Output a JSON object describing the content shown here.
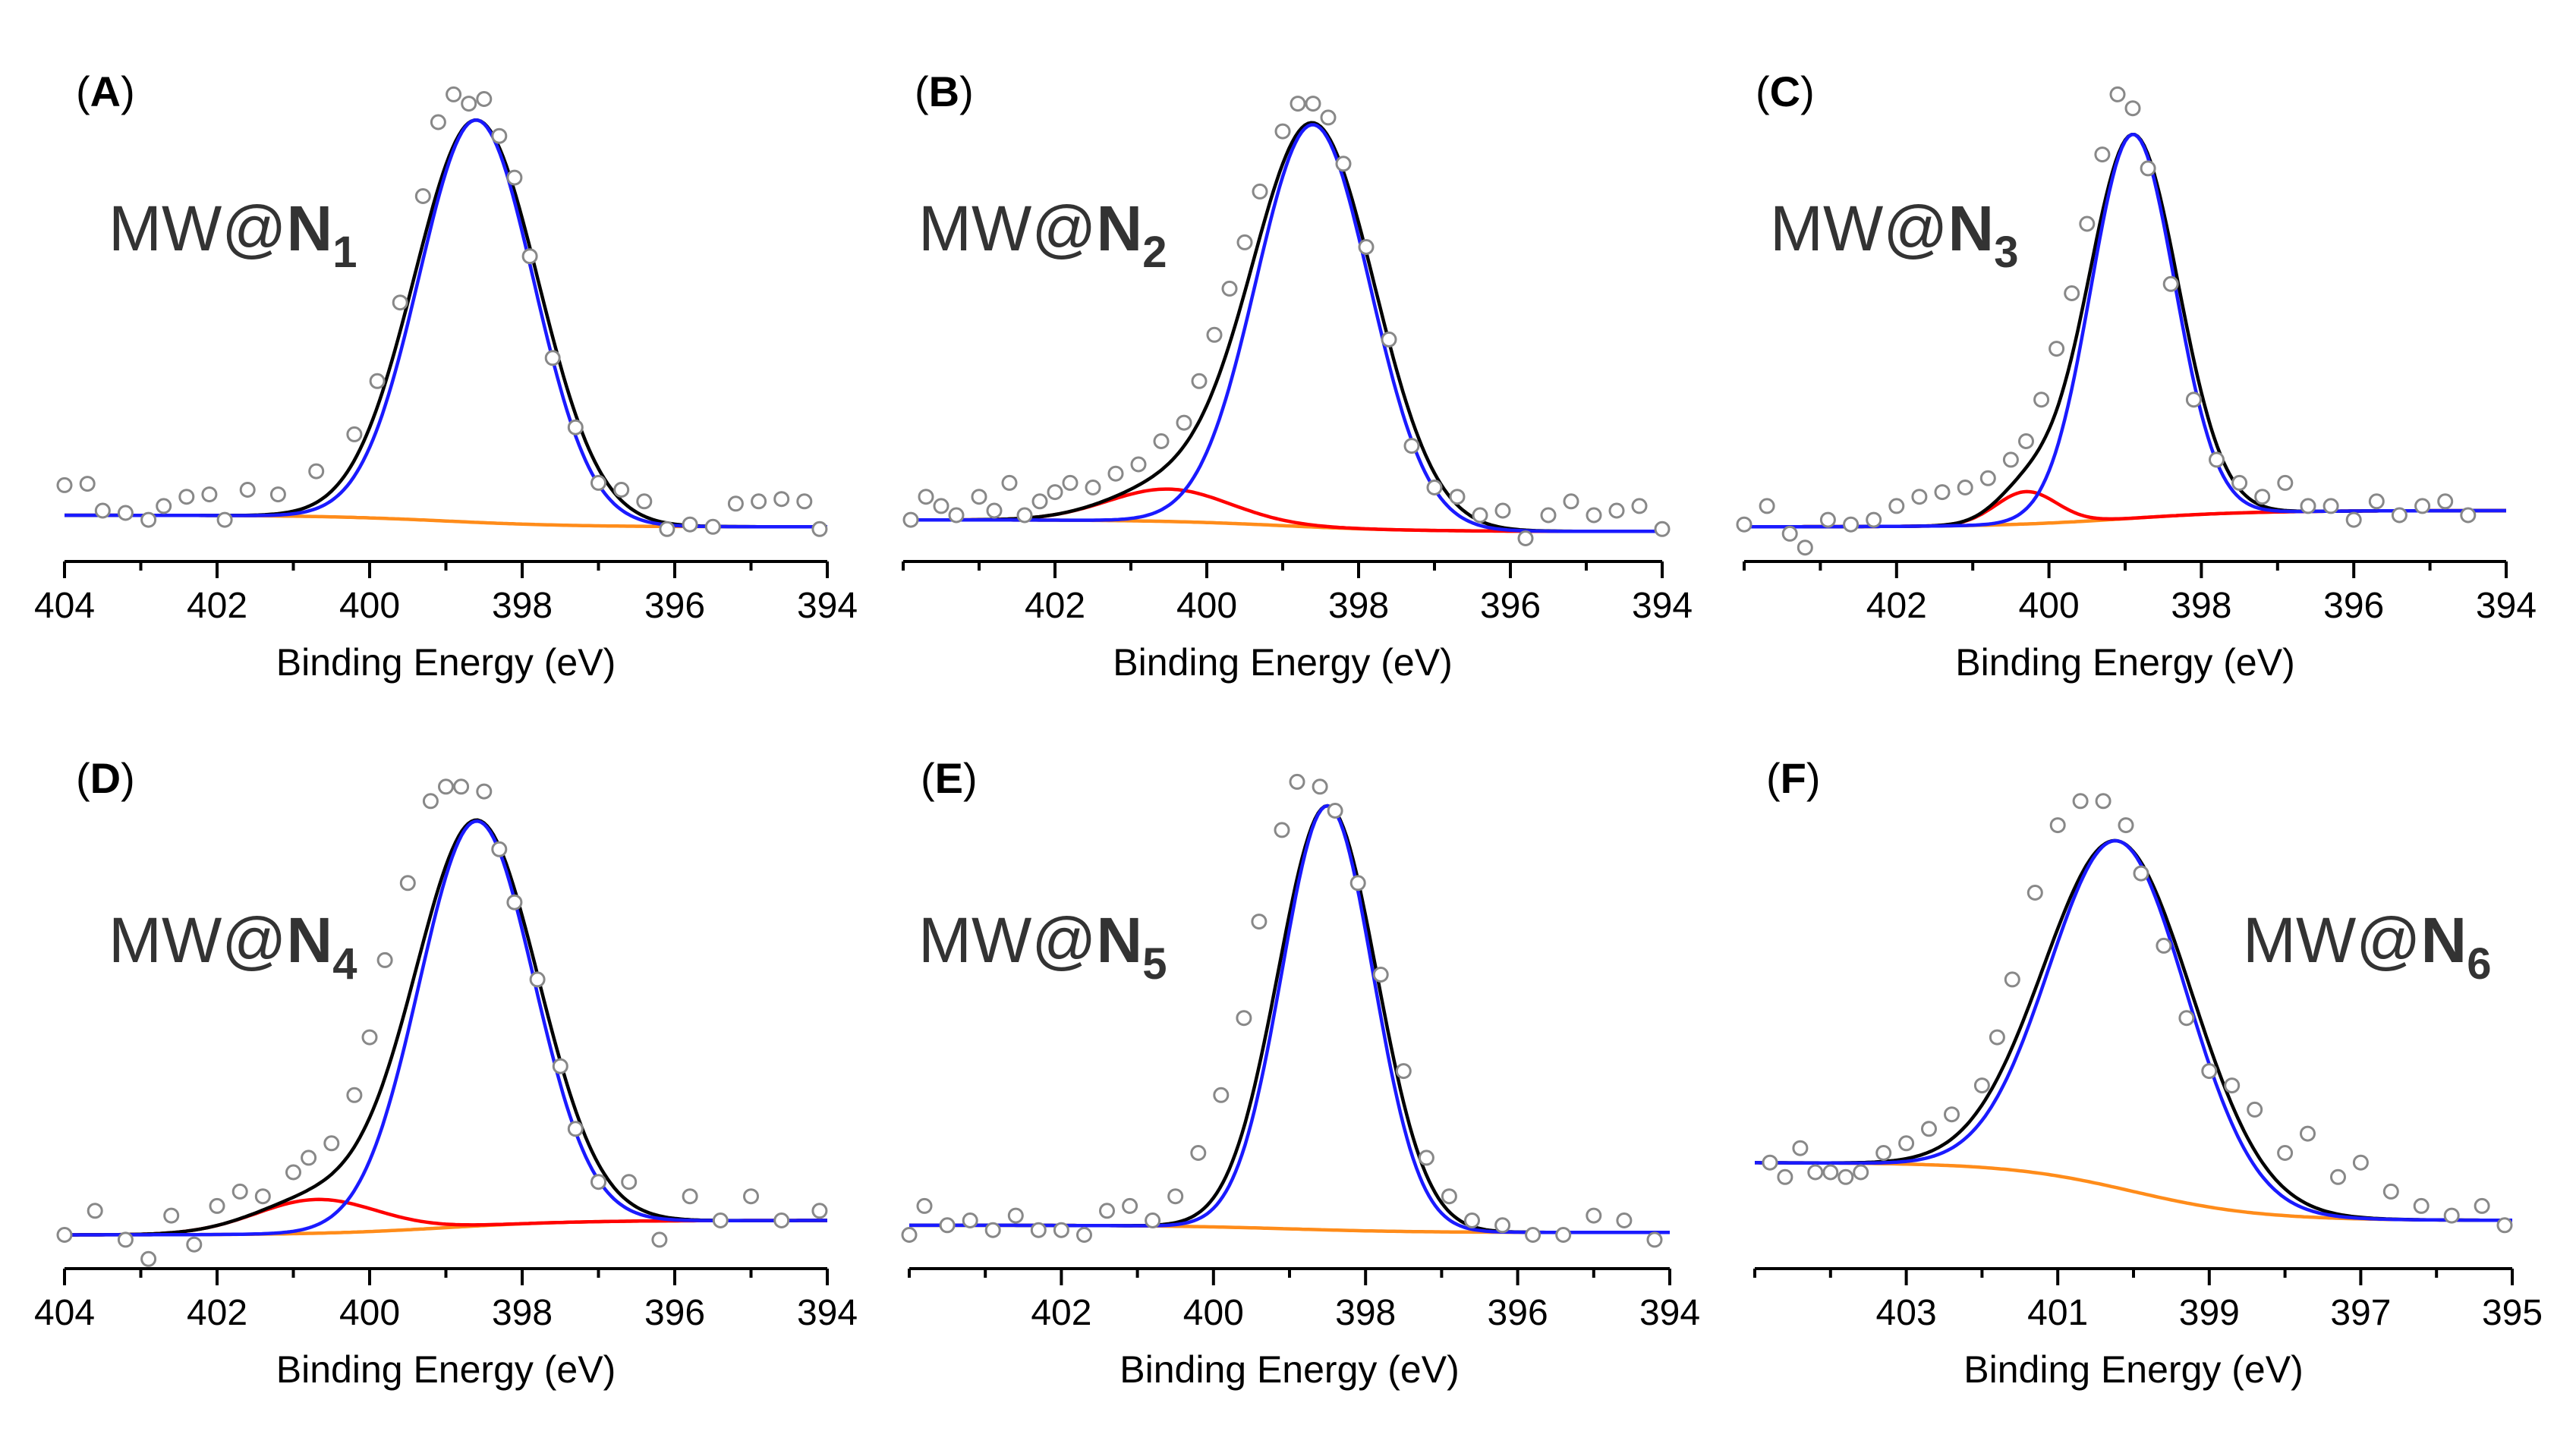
{
  "figure": {
    "colors": {
      "data_points": "#8a8a8a",
      "total_fit": "#000000",
      "main_peak": "#1a1aff",
      "secondary_peak": "#ff0000",
      "background": "#ff8c1a"
    }
  },
  "chart_data": [
    {
      "type": "scatter",
      "panel": "A",
      "title": "MW@N1",
      "title_main": "MW@",
      "title_bold": "N",
      "title_sub": "1",
      "xlabel": "Binding Energy (eV)",
      "ylabel": "",
      "xlim": [
        404,
        394
      ],
      "ylim": [
        0,
        1.05
      ],
      "xticks": [
        404,
        402,
        400,
        398,
        396,
        394
      ],
      "xtick_labels": [
        "404",
        "402",
        "400",
        "398",
        "396",
        "394"
      ],
      "peaks": [
        {
          "name": "main",
          "center": 398.6,
          "amp": 0.87,
          "width": 0.75
        }
      ],
      "background": {
        "left": 0.1,
        "right": 0.075
      },
      "points": [
        [
          404.0,
          0.165
        ],
        [
          403.7,
          0.168
        ],
        [
          403.5,
          0.11
        ],
        [
          403.2,
          0.105
        ],
        [
          402.9,
          0.09
        ],
        [
          402.7,
          0.12
        ],
        [
          402.4,
          0.14
        ],
        [
          402.1,
          0.145
        ],
        [
          401.9,
          0.09
        ],
        [
          401.6,
          0.155
        ],
        [
          401.2,
          0.145
        ],
        [
          400.7,
          0.195
        ],
        [
          400.2,
          0.275
        ],
        [
          399.9,
          0.39
        ],
        [
          399.6,
          0.56
        ],
        [
          399.3,
          0.79
        ],
        [
          399.1,
          0.95
        ],
        [
          398.9,
          1.01
        ],
        [
          398.7,
          0.99
        ],
        [
          398.5,
          1.0
        ],
        [
          398.3,
          0.92
        ],
        [
          398.1,
          0.83
        ],
        [
          397.9,
          0.66
        ],
        [
          397.6,
          0.44
        ],
        [
          397.3,
          0.29
        ],
        [
          397.0,
          0.17
        ],
        [
          396.7,
          0.155
        ],
        [
          396.4,
          0.13
        ],
        [
          396.1,
          0.07
        ],
        [
          395.8,
          0.08
        ],
        [
          395.5,
          0.075
        ],
        [
          395.2,
          0.125
        ],
        [
          394.9,
          0.13
        ],
        [
          394.6,
          0.135
        ],
        [
          394.3,
          0.13
        ],
        [
          394.1,
          0.07
        ]
      ]
    },
    {
      "type": "scatter",
      "panel": "B",
      "title": "MW@N2",
      "title_main": "MW@",
      "title_bold": "N",
      "title_sub": "2",
      "xlabel": "Binding Energy (eV)",
      "ylabel": "",
      "xlim": [
        404,
        394
      ],
      "ylim": [
        0,
        1.05
      ],
      "xticks": [
        402,
        400,
        398,
        396,
        394
      ],
      "xtick_labels": [
        "402",
        "400",
        "398",
        "396",
        "394"
      ],
      "peaks": [
        {
          "name": "secondary",
          "center": 400.5,
          "amp": 0.07,
          "width": 0.8
        },
        {
          "name": "main",
          "center": 398.6,
          "amp": 0.87,
          "width": 0.75
        }
      ],
      "background": {
        "left": 0.09,
        "right": 0.065
      },
      "points": [
        [
          403.9,
          0.09
        ],
        [
          403.7,
          0.14
        ],
        [
          403.5,
          0.12
        ],
        [
          403.3,
          0.1
        ],
        [
          403.0,
          0.14
        ],
        [
          402.8,
          0.11
        ],
        [
          402.6,
          0.17
        ],
        [
          402.4,
          0.1
        ],
        [
          402.2,
          0.13
        ],
        [
          402.0,
          0.15
        ],
        [
          401.8,
          0.17
        ],
        [
          401.5,
          0.16
        ],
        [
          401.2,
          0.19
        ],
        [
          400.9,
          0.21
        ],
        [
          400.6,
          0.26
        ],
        [
          400.3,
          0.3
        ],
        [
          400.1,
          0.39
        ],
        [
          399.9,
          0.49
        ],
        [
          399.7,
          0.59
        ],
        [
          399.5,
          0.69
        ],
        [
          399.3,
          0.8
        ],
        [
          399.0,
          0.93
        ],
        [
          398.8,
          0.99
        ],
        [
          398.6,
          0.99
        ],
        [
          398.4,
          0.96
        ],
        [
          398.2,
          0.86
        ],
        [
          397.9,
          0.68
        ],
        [
          397.6,
          0.48
        ],
        [
          397.3,
          0.25
        ],
        [
          397.0,
          0.16
        ],
        [
          396.7,
          0.14
        ],
        [
          396.4,
          0.1
        ],
        [
          396.1,
          0.11
        ],
        [
          395.8,
          0.05
        ],
        [
          395.5,
          0.1
        ],
        [
          395.2,
          0.13
        ],
        [
          394.9,
          0.1
        ],
        [
          394.6,
          0.11
        ],
        [
          394.3,
          0.12
        ],
        [
          394.0,
          0.07
        ]
      ]
    },
    {
      "type": "scatter",
      "panel": "C",
      "title": "MW@N3",
      "title_main": "MW@",
      "title_bold": "N",
      "title_sub": "3",
      "xlabel": "Binding Energy (eV)",
      "ylabel": "",
      "xlim": [
        404,
        394
      ],
      "ylim": [
        0,
        1.05
      ],
      "xticks": [
        402,
        400,
        398,
        396,
        394
      ],
      "xtick_labels": [
        "402",
        "400",
        "398",
        "396",
        "394"
      ],
      "peaks": [
        {
          "name": "secondary",
          "center": 400.3,
          "amp": 0.07,
          "width": 0.4
        },
        {
          "name": "main",
          "center": 398.9,
          "amp": 0.83,
          "width": 0.55
        }
      ],
      "background": {
        "left": 0.075,
        "right": 0.11
      },
      "points": [
        [
          404.0,
          0.08
        ],
        [
          403.7,
          0.12
        ],
        [
          403.4,
          0.06
        ],
        [
          403.2,
          0.03
        ],
        [
          402.9,
          0.09
        ],
        [
          402.6,
          0.08
        ],
        [
          402.3,
          0.09
        ],
        [
          402.0,
          0.12
        ],
        [
          401.7,
          0.14
        ],
        [
          401.4,
          0.15
        ],
        [
          401.1,
          0.16
        ],
        [
          400.8,
          0.18
        ],
        [
          400.5,
          0.22
        ],
        [
          400.3,
          0.26
        ],
        [
          400.1,
          0.35
        ],
        [
          399.9,
          0.46
        ],
        [
          399.7,
          0.58
        ],
        [
          399.5,
          0.73
        ],
        [
          399.3,
          0.88
        ],
        [
          399.1,
          1.01
        ],
        [
          398.9,
          0.98
        ],
        [
          398.7,
          0.85
        ],
        [
          398.4,
          0.6
        ],
        [
          398.1,
          0.35
        ],
        [
          397.8,
          0.22
        ],
        [
          397.5,
          0.17
        ],
        [
          397.2,
          0.14
        ],
        [
          396.9,
          0.17
        ],
        [
          396.6,
          0.12
        ],
        [
          396.3,
          0.12
        ],
        [
          396.0,
          0.09
        ],
        [
          395.7,
          0.13
        ],
        [
          395.4,
          0.1
        ],
        [
          395.1,
          0.12
        ],
        [
          394.8,
          0.13
        ],
        [
          394.5,
          0.1
        ]
      ]
    },
    {
      "type": "scatter",
      "panel": "D",
      "title": "MW@N4",
      "title_main": "MW@",
      "title_bold": "N",
      "title_sub": "4",
      "xlabel": "Binding Energy (eV)",
      "ylabel": "",
      "xlim": [
        404,
        394
      ],
      "ylim": [
        0,
        1.05
      ],
      "xticks": [
        404,
        402,
        400,
        398,
        396,
        394
      ],
      "xtick_labels": [
        "404",
        "402",
        "400",
        "398",
        "396",
        "394"
      ],
      "peaks": [
        {
          "name": "secondary",
          "center": 400.7,
          "amp": 0.07,
          "width": 0.8
        },
        {
          "name": "main",
          "center": 398.6,
          "amp": 0.84,
          "width": 0.75
        }
      ],
      "background": {
        "left": 0.07,
        "right": 0.1
      },
      "points": [
        [
          404.0,
          0.07
        ],
        [
          403.6,
          0.12
        ],
        [
          403.2,
          0.06
        ],
        [
          402.9,
          0.02
        ],
        [
          402.6,
          0.11
        ],
        [
          402.3,
          0.05
        ],
        [
          402.0,
          0.13
        ],
        [
          401.7,
          0.16
        ],
        [
          401.4,
          0.15
        ],
        [
          401.0,
          0.2
        ],
        [
          400.8,
          0.23
        ],
        [
          400.5,
          0.26
        ],
        [
          400.2,
          0.36
        ],
        [
          400.0,
          0.48
        ],
        [
          399.8,
          0.64
        ],
        [
          399.5,
          0.8
        ],
        [
          399.2,
          0.97
        ],
        [
          399.0,
          1.0
        ],
        [
          398.8,
          1.0
        ],
        [
          398.5,
          0.99
        ],
        [
          398.3,
          0.87
        ],
        [
          398.1,
          0.76
        ],
        [
          397.8,
          0.6
        ],
        [
          397.5,
          0.42
        ],
        [
          397.3,
          0.29
        ],
        [
          397.0,
          0.18
        ],
        [
          396.6,
          0.18
        ],
        [
          396.2,
          0.06
        ],
        [
          395.8,
          0.15
        ],
        [
          395.4,
          0.1
        ],
        [
          395.0,
          0.15
        ],
        [
          394.6,
          0.1
        ],
        [
          394.1,
          0.12
        ]
      ]
    },
    {
      "type": "scatter",
      "panel": "E",
      "title": "MW@N5",
      "title_main": "MW@",
      "title_bold": "N",
      "title_sub": "5",
      "xlabel": "Binding Energy (eV)",
      "ylabel": "",
      "xlim": [
        404,
        394
      ],
      "ylim": [
        0,
        1.05
      ],
      "xticks": [
        402,
        400,
        398,
        396,
        394
      ],
      "xtick_labels": [
        "402",
        "400",
        "398",
        "396",
        "394"
      ],
      "peaks": [
        {
          "name": "main",
          "center": 398.5,
          "amp": 0.88,
          "width": 0.6
        }
      ],
      "background": {
        "left": 0.09,
        "right": 0.075
      },
      "points": [
        [
          404.0,
          0.07
        ],
        [
          403.8,
          0.13
        ],
        [
          403.5,
          0.09
        ],
        [
          403.2,
          0.1
        ],
        [
          402.9,
          0.08
        ],
        [
          402.6,
          0.11
        ],
        [
          402.3,
          0.08
        ],
        [
          402.0,
          0.08
        ],
        [
          401.7,
          0.07
        ],
        [
          401.4,
          0.12
        ],
        [
          401.1,
          0.13
        ],
        [
          400.8,
          0.1
        ],
        [
          400.5,
          0.15
        ],
        [
          400.2,
          0.24
        ],
        [
          399.9,
          0.36
        ],
        [
          399.6,
          0.52
        ],
        [
          399.4,
          0.72
        ],
        [
          399.1,
          0.91
        ],
        [
          398.9,
          1.01
        ],
        [
          398.6,
          1.0
        ],
        [
          398.4,
          0.95
        ],
        [
          398.1,
          0.8
        ],
        [
          397.8,
          0.61
        ],
        [
          397.5,
          0.41
        ],
        [
          397.2,
          0.23
        ],
        [
          396.9,
          0.15
        ],
        [
          396.6,
          0.1
        ],
        [
          396.2,
          0.09
        ],
        [
          395.8,
          0.07
        ],
        [
          395.4,
          0.07
        ],
        [
          395.0,
          0.11
        ],
        [
          394.6,
          0.1
        ],
        [
          394.2,
          0.06
        ]
      ]
    },
    {
      "type": "scatter",
      "panel": "F",
      "title": "MW@N6",
      "title_main": "MW@",
      "title_bold": "N",
      "title_sub": "6",
      "xlabel": "Binding Energy (eV)",
      "ylabel": "",
      "xlim": [
        405,
        395
      ],
      "ylim": [
        0,
        1.05
      ],
      "xticks": [
        403,
        401,
        399,
        397,
        395
      ],
      "xtick_labels": [
        "403",
        "401",
        "399",
        "397",
        "395"
      ],
      "peaks": [
        {
          "name": "main",
          "center": 400.2,
          "amp": 0.72,
          "width": 0.9
        }
      ],
      "background": {
        "left": 0.22,
        "right": 0.1
      },
      "points": [
        [
          404.8,
          0.22
        ],
        [
          404.6,
          0.19
        ],
        [
          404.4,
          0.25
        ],
        [
          404.2,
          0.2
        ],
        [
          404.0,
          0.2
        ],
        [
          403.8,
          0.19
        ],
        [
          403.6,
          0.2
        ],
        [
          403.3,
          0.24
        ],
        [
          403.0,
          0.26
        ],
        [
          402.7,
          0.29
        ],
        [
          402.4,
          0.32
        ],
        [
          402.0,
          0.38
        ],
        [
          401.8,
          0.48
        ],
        [
          401.6,
          0.6
        ],
        [
          401.3,
          0.78
        ],
        [
          401.0,
          0.92
        ],
        [
          400.7,
          0.97
        ],
        [
          400.4,
          0.97
        ],
        [
          400.1,
          0.92
        ],
        [
          399.9,
          0.82
        ],
        [
          399.6,
          0.67
        ],
        [
          399.3,
          0.52
        ],
        [
          399.0,
          0.41
        ],
        [
          398.7,
          0.38
        ],
        [
          398.4,
          0.33
        ],
        [
          398.0,
          0.24
        ],
        [
          397.7,
          0.28
        ],
        [
          397.3,
          0.19
        ],
        [
          397.0,
          0.22
        ],
        [
          396.6,
          0.16
        ],
        [
          396.2,
          0.13
        ],
        [
          395.8,
          0.11
        ],
        [
          395.4,
          0.13
        ],
        [
          395.1,
          0.09
        ]
      ]
    }
  ]
}
